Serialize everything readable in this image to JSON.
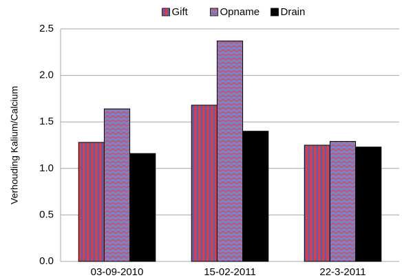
{
  "chart_data": {
    "type": "bar",
    "y_label": "Verhouding Kalium/Calcium",
    "categories": [
      "03-09-2010",
      "15-02-2011",
      "22-3-2011"
    ],
    "series": [
      {
        "name": "Gift",
        "color": "#e8393b",
        "values": [
          1.28,
          1.68,
          1.25
        ]
      },
      {
        "name": "Opname",
        "color": "#7f7fc4",
        "values": [
          1.64,
          2.37,
          1.29
        ]
      },
      {
        "name": "Drain",
        "color": "#000000",
        "values": [
          1.16,
          1.4,
          1.23
        ]
      }
    ],
    "ylim": [
      0,
      2.5
    ],
    "yticks": [
      {
        "value": 0,
        "label": "0.0"
      },
      0.5,
      {
        "value": 1,
        "label": "1.0"
      },
      1.5,
      {
        "value": 2,
        "label": "2.0"
      },
      2.5
    ],
    "grid": true,
    "legend": "top"
  }
}
